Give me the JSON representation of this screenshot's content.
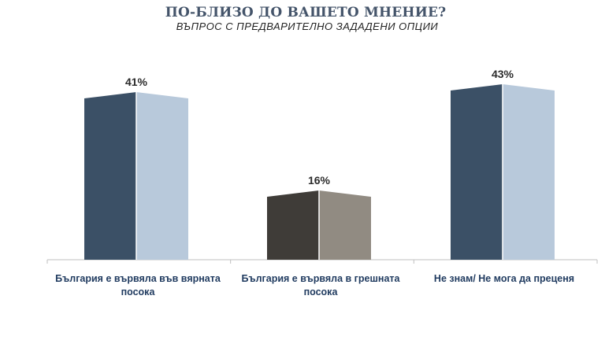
{
  "chart_data": {
    "type": "bar",
    "title": "ПО-БЛИЗО ДО ВАШЕТО МНЕНИЕ?",
    "subtitle": "ВЪПРОС С ПРЕДВАРИТЕЛНО ЗАДАДЕНИ ОПЦИИ",
    "categories": [
      [
        "България е вървяла във вярната",
        "посока"
      ],
      [
        "България е вървяла в грешната",
        "посока"
      ],
      [
        "Не знам/ Не мога да преценя"
      ]
    ],
    "values": [
      41,
      16,
      43
    ],
    "value_labels": [
      "41%",
      "16%",
      "43%"
    ],
    "ylim": [
      0,
      50
    ],
    "grid": false,
    "colors": [
      {
        "dark": "#3b5066",
        "light": "#b8c9db"
      },
      {
        "dark": "#3f3c38",
        "light": "#918b82"
      },
      {
        "dark": "#3b5066",
        "light": "#b8c9db"
      }
    ],
    "value_label_color": "#2b2b2b",
    "axis_color": "#bfbfbf",
    "category_label_color": "#1f3a5f"
  }
}
